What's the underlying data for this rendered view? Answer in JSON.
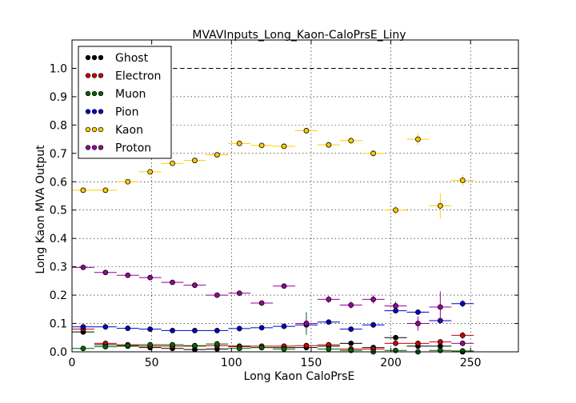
{
  "chart_data": {
    "type": "scatter",
    "title": "MVAVInputs_Long_Kaon-CaloPrsE_Liny",
    "xlabel": "Long Kaon CaloPrsE",
    "ylabel": "Long Kaon MVA Output",
    "xlim": [
      0,
      280
    ],
    "ylim": [
      0,
      1.1
    ],
    "xticks": [
      "0",
      "50",
      "100",
      "150",
      "200",
      "250"
    ],
    "yticks": [
      "0.0",
      "0.1",
      "0.2",
      "0.3",
      "0.4",
      "0.5",
      "0.6",
      "0.7",
      "0.8",
      "0.9",
      "1.0"
    ],
    "grid": true,
    "reference_line_y": 1.0,
    "legend_position": "top-left",
    "x_bins": [
      7,
      21,
      35,
      49,
      63,
      77,
      91,
      105,
      119,
      133,
      147,
      161,
      175,
      189,
      203,
      217,
      231,
      245
    ],
    "x_half_width": 7,
    "series": [
      {
        "name": "Ghost",
        "color": "#000000",
        "values": [
          0.07,
          0.025,
          0.02,
          0.015,
          0.012,
          0.008,
          0.01,
          0.02,
          0.015,
          0.015,
          0.015,
          0.02,
          0.03,
          0.015,
          0.05,
          0.02,
          0.02,
          0.0
        ],
        "errors": [
          0.005,
          0.005,
          0.005,
          0.005,
          0.005,
          0.005,
          0.005,
          0.005,
          0.005,
          0.005,
          0.005,
          0.005,
          0.006,
          0.006,
          0.008,
          0.008,
          0.01,
          0.005
        ]
      },
      {
        "name": "Electron",
        "color": "#cc0000",
        "values": [
          0.08,
          0.03,
          0.025,
          0.02,
          0.02,
          0.02,
          0.022,
          0.018,
          0.02,
          0.02,
          0.022,
          0.025,
          0.01,
          0.01,
          0.03,
          0.03,
          0.035,
          0.058
        ],
        "errors": [
          0.005,
          0.005,
          0.005,
          0.005,
          0.005,
          0.005,
          0.005,
          0.005,
          0.005,
          0.005,
          0.006,
          0.006,
          0.006,
          0.006,
          0.008,
          0.008,
          0.01,
          0.012
        ]
      },
      {
        "name": "Muon",
        "color": "#006600",
        "values": [
          0.012,
          0.018,
          0.022,
          0.025,
          0.025,
          0.022,
          0.028,
          0.012,
          0.015,
          0.01,
          0.1,
          0.01,
          0.005,
          0.0,
          0.005,
          0.0,
          0.005,
          0.003
        ],
        "errors": [
          0.005,
          0.005,
          0.005,
          0.005,
          0.005,
          0.005,
          0.008,
          0.005,
          0.005,
          0.005,
          0.04,
          0.005,
          0.005,
          0.003,
          0.005,
          0.003,
          0.005,
          0.003
        ]
      },
      {
        "name": "Pion",
        "color": "#0000cc",
        "values": [
          0.088,
          0.088,
          0.083,
          0.08,
          0.075,
          0.075,
          0.075,
          0.082,
          0.085,
          0.09,
          0.095,
          0.105,
          0.08,
          0.095,
          0.145,
          0.14,
          0.11,
          0.17
        ],
        "errors": [
          0.004,
          0.004,
          0.004,
          0.004,
          0.004,
          0.004,
          0.004,
          0.004,
          0.004,
          0.004,
          0.005,
          0.005,
          0.006,
          0.006,
          0.008,
          0.008,
          0.01,
          0.012
        ]
      },
      {
        "name": "Kaon",
        "color": "#ffcc00",
        "values": [
          0.57,
          0.57,
          0.6,
          0.635,
          0.665,
          0.675,
          0.695,
          0.735,
          0.728,
          0.725,
          0.78,
          0.73,
          0.745,
          0.7,
          0.5,
          0.75,
          0.515,
          0.605
        ],
        "errors": [
          0.005,
          0.005,
          0.005,
          0.005,
          0.005,
          0.005,
          0.006,
          0.006,
          0.007,
          0.008,
          0.01,
          0.01,
          0.012,
          0.012,
          0.015,
          0.02,
          0.045,
          0.02
        ]
      },
      {
        "name": "Proton",
        "color": "#990099",
        "values": [
          0.298,
          0.28,
          0.27,
          0.262,
          0.245,
          0.235,
          0.2,
          0.207,
          0.172,
          0.232,
          0.1,
          0.185,
          0.165,
          0.185,
          0.162,
          0.1,
          0.158,
          0.03
        ],
        "errors": [
          0.005,
          0.005,
          0.005,
          0.005,
          0.005,
          0.005,
          0.006,
          0.006,
          0.007,
          0.008,
          0.015,
          0.012,
          0.012,
          0.015,
          0.015,
          0.025,
          0.055,
          0.01
        ]
      }
    ]
  }
}
